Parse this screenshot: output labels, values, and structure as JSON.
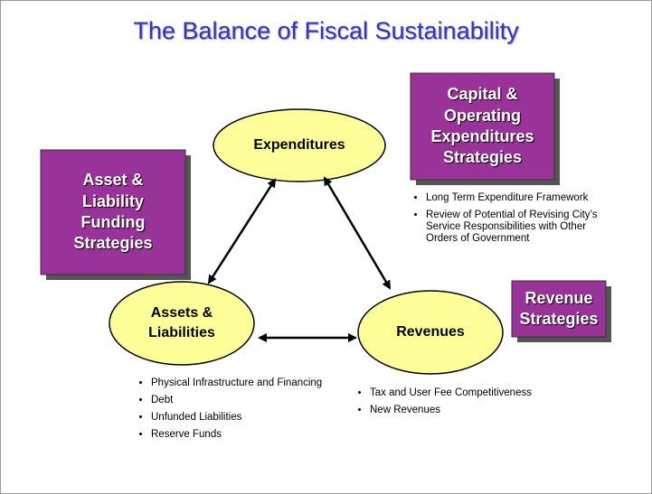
{
  "title": "The Balance of Fiscal Sustainability",
  "nodes": [
    {
      "label": "Expenditures"
    },
    {
      "label": "Assets & Liabilities"
    },
    {
      "label": "Revenues"
    }
  ],
  "strategies": [
    {
      "label": "Capital & Operating Expenditures Strategies"
    },
    {
      "label": "Asset & Liability Funding Strategies"
    },
    {
      "label": "Revenue Strategies"
    }
  ],
  "bullet_lists": [
    [
      "Long Term Expenditure Framework",
      "Review of Potential of Revising City’s Service Responsibilities with Other Orders of Government"
    ],
    [
      "Physical Infrastructure and Financing",
      "Debt",
      "Unfunded Liabilities",
      "Reserve Funds"
    ],
    [
      "Tax and User Fee Competitiveness",
      "New Revenues"
    ]
  ]
}
